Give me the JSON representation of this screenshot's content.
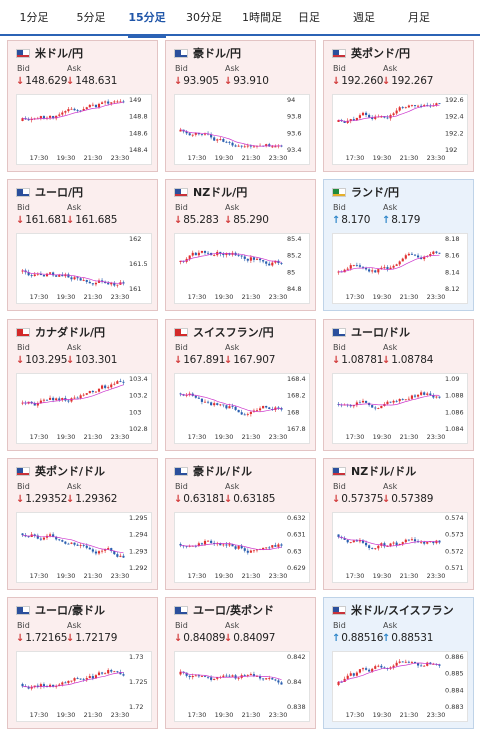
{
  "tabs": [
    {
      "label": "1分足"
    },
    {
      "label": "5分足"
    },
    {
      "label": "15分足"
    },
    {
      "label": "30分足"
    },
    {
      "label": "1時間足"
    },
    {
      "label": "日足"
    },
    {
      "label": "週足"
    },
    {
      "label": "月足"
    }
  ],
  "active_tab": 2,
  "labels": {
    "bid": "Bid",
    "ask": "Ask"
  },
  "colors": {
    "up": "#2f86c9",
    "down": "#d23b3b",
    "ma": "#cc33cc",
    "candle_up": "#e03030",
    "candle_down": "#2a5fb0"
  },
  "x_ticks": [
    "17:30",
    "19:30",
    "21:30",
    "23:30"
  ],
  "cards": [
    {
      "pair": "米ドル/円",
      "flag": "us",
      "dir": "down",
      "bid": "148.629",
      "ask": "148.631",
      "y_ticks": [
        "149",
        "148.8",
        "148.6",
        "148.4"
      ]
    },
    {
      "pair": "豪ドル/円",
      "flag": "au",
      "dir": "down",
      "bid": "93.905",
      "ask": "93.910",
      "y_ticks": [
        "94",
        "93.8",
        "93.6",
        "93.4"
      ]
    },
    {
      "pair": "英ポンド/円",
      "flag": "gb",
      "dir": "down",
      "bid": "192.260",
      "ask": "192.267",
      "y_ticks": [
        "192.6",
        "192.4",
        "192.2",
        "192"
      ]
    },
    {
      "pair": "ユーロ/円",
      "flag": "eu",
      "dir": "down",
      "bid": "161.681",
      "ask": "161.685",
      "y_ticks": [
        "162",
        "161.5",
        "161"
      ]
    },
    {
      "pair": "NZドル/円",
      "flag": "nz",
      "dir": "down",
      "bid": "85.283",
      "ask": "85.290",
      "y_ticks": [
        "85.4",
        "85.2",
        "85",
        "84.8"
      ]
    },
    {
      "pair": "ランド/円",
      "flag": "za",
      "dir": "up",
      "bid": "8.170",
      "ask": "8.179",
      "y_ticks": [
        "8.18",
        "8.16",
        "8.14",
        "8.12"
      ]
    },
    {
      "pair": "カナダドル/円",
      "flag": "ca",
      "dir": "down",
      "bid": "103.295",
      "ask": "103.301",
      "y_ticks": [
        "103.4",
        "103.2",
        "103",
        "102.8"
      ]
    },
    {
      "pair": "スイスフラン/円",
      "flag": "ch",
      "dir": "down",
      "bid": "167.891",
      "ask": "167.907",
      "y_ticks": [
        "168.4",
        "168.2",
        "168",
        "167.8"
      ]
    },
    {
      "pair": "ユーロ/ドル",
      "flag": "eu",
      "dir": "down",
      "bid": "1.08781",
      "ask": "1.08784",
      "y_ticks": [
        "1.09",
        "1.088",
        "1.086",
        "1.084"
      ]
    },
    {
      "pair": "英ポンド/ドル",
      "flag": "gb",
      "dir": "down",
      "bid": "1.29352",
      "ask": "1.29362",
      "y_ticks": [
        "1.295",
        "1.294",
        "1.293",
        "1.292"
      ]
    },
    {
      "pair": "豪ドル/ドル",
      "flag": "au",
      "dir": "down",
      "bid": "0.63181",
      "ask": "0.63185",
      "y_ticks": [
        "0.632",
        "0.631",
        "0.63",
        "0.629"
      ]
    },
    {
      "pair": "NZドル/ドル",
      "flag": "nz",
      "dir": "down",
      "bid": "0.57375",
      "ask": "0.57389",
      "y_ticks": [
        "0.574",
        "0.573",
        "0.572",
        "0.571"
      ]
    },
    {
      "pair": "ユーロ/豪ドル",
      "flag": "eu",
      "dir": "down",
      "bid": "1.72165",
      "ask": "1.72179",
      "y_ticks": [
        "1.73",
        "1.725",
        "1.72"
      ]
    },
    {
      "pair": "ユーロ/英ポンド",
      "flag": "eu",
      "dir": "down",
      "bid": "0.84089",
      "ask": "0.84097",
      "y_ticks": [
        "0.842",
        "0.84",
        "0.838"
      ]
    },
    {
      "pair": "米ドル/スイスフラン",
      "flag": "us",
      "dir": "up",
      "bid": "0.88516",
      "ask": "0.88531",
      "y_ticks": [
        "0.886",
        "0.885",
        "0.884",
        "0.883"
      ]
    }
  ]
}
